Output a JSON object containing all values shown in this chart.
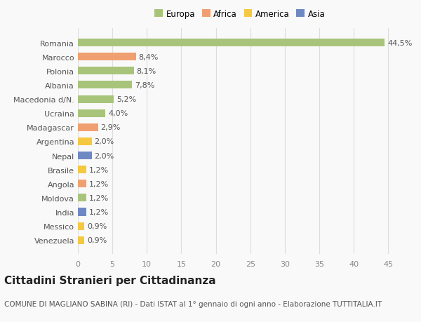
{
  "categories": [
    "Venezuela",
    "Messico",
    "India",
    "Moldova",
    "Angola",
    "Brasile",
    "Nepal",
    "Argentina",
    "Madagascar",
    "Ucraina",
    "Macedonia d/N.",
    "Albania",
    "Polonia",
    "Marocco",
    "Romania"
  ],
  "values": [
    0.9,
    0.9,
    1.2,
    1.2,
    1.2,
    1.2,
    2.0,
    2.0,
    2.9,
    4.0,
    5.2,
    7.8,
    8.1,
    8.4,
    44.5
  ],
  "labels": [
    "0,9%",
    "0,9%",
    "1,2%",
    "1,2%",
    "1,2%",
    "1,2%",
    "2,0%",
    "2,0%",
    "2,9%",
    "4,0%",
    "5,2%",
    "7,8%",
    "8,1%",
    "8,4%",
    "44,5%"
  ],
  "colors": [
    "#f5c842",
    "#f5c842",
    "#6e88c4",
    "#a8c47a",
    "#f0a070",
    "#f5c842",
    "#6e88c4",
    "#f5c842",
    "#f0a070",
    "#a8c47a",
    "#a8c47a",
    "#a8c47a",
    "#a8c47a",
    "#f0a070",
    "#a8c47a"
  ],
  "legend_labels": [
    "Europa",
    "Africa",
    "America",
    "Asia"
  ],
  "legend_colors": [
    "#a8c47a",
    "#f0a070",
    "#f5c842",
    "#6e88c4"
  ],
  "title": "Cittadini Stranieri per Cittadinanza",
  "subtitle": "COMUNE DI MAGLIANO SABINA (RI) - Dati ISTAT al 1° gennaio di ogni anno - Elaborazione TUTTITALIA.IT",
  "xlim": [
    0,
    47
  ],
  "background_color": "#f9f9f9",
  "bar_height": 0.55,
  "grid_color": "#dddddd",
  "tick_color": "#888888",
  "label_color": "#555555",
  "title_fontsize": 11,
  "subtitle_fontsize": 7.5,
  "axis_fontsize": 8,
  "bar_label_fontsize": 8
}
